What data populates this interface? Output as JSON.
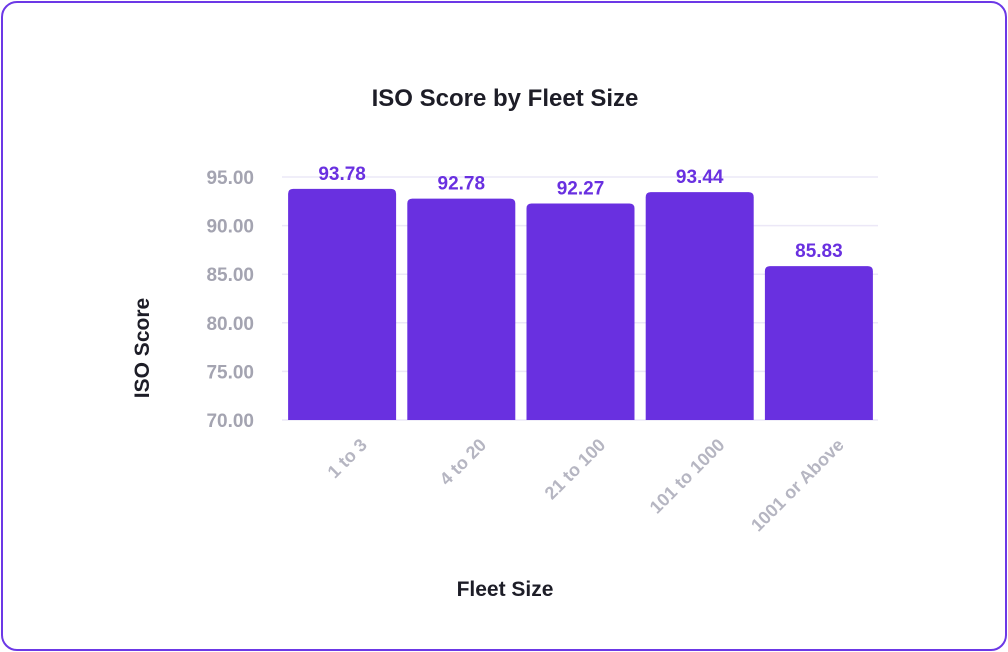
{
  "chart_data": {
    "type": "bar",
    "title": "ISO Score by Fleet Size",
    "xlabel": "Fleet Size",
    "ylabel": "ISO Score",
    "categories": [
      "1 to 3",
      "4 to 20",
      "21 to 100",
      "101 to 1000",
      "1001 or Above"
    ],
    "values": [
      93.78,
      92.78,
      92.27,
      93.44,
      85.83
    ],
    "data_labels": [
      "93.78",
      "92.78",
      "92.27",
      "93.44",
      "85.83"
    ],
    "ylim": [
      70,
      97
    ],
    "yticks": [
      70,
      75,
      80,
      85,
      90,
      95
    ],
    "ytick_labels": [
      "70.00",
      "75.00",
      "80.00",
      "85.00",
      "90.00",
      "95.00"
    ],
    "grid": true,
    "legend": "none",
    "colors": {
      "bar": "#6930e0",
      "data_label": "#6930e0",
      "border": "#6c38e6",
      "grid": "#ece8f7"
    }
  }
}
